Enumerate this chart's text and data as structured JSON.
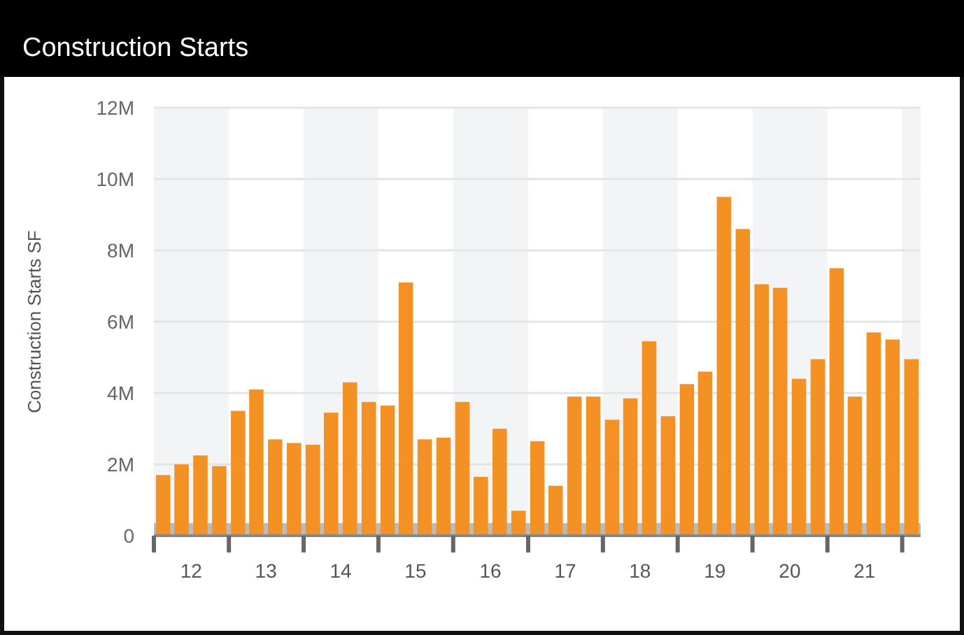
{
  "chart_data": {
    "type": "bar",
    "title": "Construction Starts",
    "ylabel": "Construction Starts SF",
    "x": [
      "2012-02-15",
      "2012-05-15",
      "2012-08-15",
      "2012-11-15",
      "2013-02-15",
      "2013-05-15",
      "2013-08-15",
      "2013-11-15",
      "2014-02-15",
      "2014-05-15",
      "2014-08-15",
      "2014-11-15",
      "2015-02-15",
      "2015-05-15",
      "2015-08-15",
      "2015-11-15",
      "2016-02-15",
      "2016-05-15",
      "2016-08-15",
      "2016-11-15",
      "2017-02-15",
      "2017-05-15",
      "2017-08-15",
      "2017-11-15",
      "2018-02-15",
      "2018-05-15",
      "2018-08-15",
      "2018-11-15",
      "2019-02-15",
      "2019-05-15",
      "2019-08-15",
      "2019-11-15",
      "2020-02-15",
      "2020-05-15",
      "2020-08-15",
      "2020-11-15",
      "2021-02-15",
      "2021-05-15",
      "2021-08-15",
      "2021-11-15",
      "2022-02-15"
    ],
    "values": [
      1.7,
      2.0,
      2.25,
      1.95,
      3.5,
      4.1,
      2.7,
      2.6,
      2.55,
      3.45,
      4.3,
      3.75,
      3.65,
      7.1,
      2.7,
      2.75,
      3.75,
      1.65,
      3.0,
      0.7,
      2.65,
      1.4,
      3.9,
      3.9,
      3.25,
      3.85,
      5.45,
      3.35,
      4.25,
      4.6,
      9.5,
      8.6,
      7.05,
      6.95,
      4.4,
      4.95,
      7.5,
      3.9,
      5.7,
      5.5,
      4.95
    ],
    "color": "#f39124",
    "xlim": [
      "2012-01-01",
      "2022-04-01"
    ],
    "xticks": [
      {
        "value": "2012-01-01",
        "label": null
      },
      {
        "value": "2012-07-01",
        "label": "12"
      },
      {
        "value": "2013-01-01",
        "label": null
      },
      {
        "value": "2013-07-01",
        "label": "13"
      },
      {
        "value": "2014-01-01",
        "label": null
      },
      {
        "value": "2014-07-01",
        "label": "14"
      },
      {
        "value": "2015-01-01",
        "label": null
      },
      {
        "value": "2015-07-01",
        "label": "15"
      },
      {
        "value": "2016-01-01",
        "label": null
      },
      {
        "value": "2016-07-01",
        "label": "16"
      },
      {
        "value": "2017-01-01",
        "label": null
      },
      {
        "value": "2017-07-01",
        "label": "17"
      },
      {
        "value": "2018-01-01",
        "label": null
      },
      {
        "value": "2018-07-01",
        "label": "18"
      },
      {
        "value": "2019-01-01",
        "label": null
      },
      {
        "value": "2019-07-01",
        "label": "19"
      },
      {
        "value": "2020-01-01",
        "label": null
      },
      {
        "value": "2020-07-01",
        "label": "20"
      },
      {
        "value": "2021-01-01",
        "label": null
      },
      {
        "value": "2021-07-01",
        "label": "21"
      },
      {
        "value": "2022-01-01",
        "label": null
      }
    ],
    "ylim": [
      0,
      12
    ],
    "yticks": [
      {
        "value": 0,
        "label": "0"
      },
      {
        "value": 2,
        "label": "2M"
      },
      {
        "value": 4,
        "label": "4M"
      },
      {
        "value": 6,
        "label": "6M"
      },
      {
        "value": 8,
        "label": "8M"
      },
      {
        "value": 10,
        "label": "10M"
      },
      {
        "value": 12,
        "label": "12M"
      }
    ],
    "grid": "y",
    "bands": [
      {
        "axis": "x",
        "from": "2012-01-01",
        "to": "2013-01-01",
        "color": "#f2f4f6"
      },
      {
        "axis": "x",
        "from": "2014-01-01",
        "to": "2015-01-01",
        "color": "#f2f4f6"
      },
      {
        "axis": "x",
        "from": "2016-01-01",
        "to": "2017-01-01",
        "color": "#f2f4f6"
      },
      {
        "axis": "x",
        "from": "2018-01-01",
        "to": "2019-01-01",
        "color": "#f2f4f6"
      },
      {
        "axis": "x",
        "from": "2020-01-01",
        "to": "2021-01-01",
        "color": "#f2f4f6"
      },
      {
        "axis": "x",
        "from": "2022-01-01",
        "to": "2022-04-01",
        "color": "#f2f4f6"
      }
    ]
  }
}
